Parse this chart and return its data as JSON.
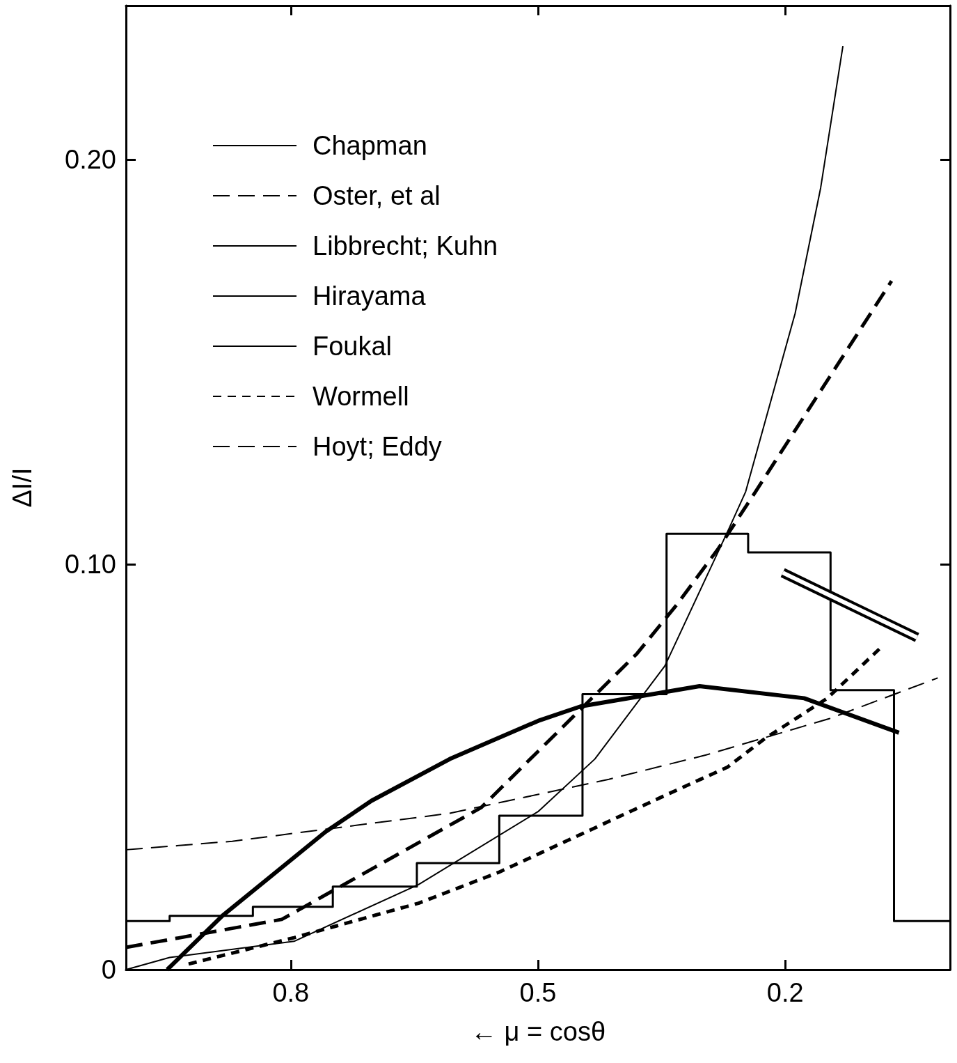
{
  "chart_data": {
    "type": "line",
    "xlabel": "← μ = cosθ",
    "ylabel": "ΔI/I",
    "xlim": [
      1,
      0
    ],
    "xticks": [
      0.8,
      0.5,
      0.2
    ],
    "ylim": [
      0,
      0.238
    ],
    "yticks": [
      0,
      {
        "value": 0.1,
        "label": "0.10"
      },
      {
        "value": 0.2,
        "label": "0.20"
      }
    ],
    "grid": false,
    "legend": "top left",
    "marker": "none",
    "series": [
      {
        "name": "Chapman",
        "color": "#000000",
        "line_style": "solid",
        "x": [
          1.0,
          0.947,
          0.796,
          0.645,
          0.5,
          0.431,
          0.346,
          0.268,
          0.248,
          0.188,
          0.157,
          0.13
        ],
        "values": [
          0,
          0.003,
          0.007,
          0.021,
          0.039,
          0.052,
          0.075,
          0.109,
          0.118,
          0.162,
          0.193,
          0.228
        ]
      },
      {
        "name": "Oster, et al",
        "color": "#000000",
        "line_style": "dashed",
        "x": [
          1.0,
          0.811,
          0.569,
          0.38,
          0.332,
          0.281,
          0.236,
          0.071
        ],
        "values": [
          0.0055,
          0.0124,
          0.04,
          0.078,
          0.09,
          0.104,
          0.118,
          0.17
        ]
      },
      {
        "name": "Libbrecht; Kuhn",
        "color": "#000000",
        "line_style": "solid",
        "x": [
          0.203,
          0.04
        ],
        "values": [
          0.098,
          0.082
        ]
      },
      {
        "name": "Hirayama",
        "type": "step",
        "color": "#000000",
        "line_style": "solid",
        "x": [
          1.0,
          0.947,
          0.846,
          0.749,
          0.647,
          0.547,
          0.446,
          0.344,
          0.245,
          0.145,
          0.068,
          0.0
        ],
        "values": [
          0.012,
          0.0133,
          0.0155,
          0.0205,
          0.0263,
          0.038,
          0.068,
          0.1076,
          0.103,
          0.069,
          0.012,
          0.012
        ]
      },
      {
        "name": "Foukal",
        "color": "#000000",
        "line_style": "solid",
        "x": [
          0.95,
          0.883,
          0.758,
          0.702,
          0.607,
          0.5,
          0.448,
          0.304,
          0.177,
          0.062
        ],
        "values": [
          0,
          0.0133,
          0.034,
          0.0417,
          0.052,
          0.0614,
          0.065,
          0.07,
          0.067,
          0.0585
        ]
      },
      {
        "name": "Wormell",
        "color": "#000000",
        "line_style": "dotted",
        "x": [
          0.924,
          0.796,
          0.645,
          0.548,
          0.346,
          0.27,
          0.225,
          0.149,
          0.084
        ],
        "values": [
          0.0014,
          0.0079,
          0.0164,
          0.024,
          0.043,
          0.05,
          0.057,
          0.067,
          0.0795
        ]
      },
      {
        "name": "Hoyt; Eddy",
        "color": "#000000",
        "line_style": "dashed",
        "x": [
          1.0,
          0.871,
          0.607,
          0.414,
          0.296,
          0.146,
          0.015
        ],
        "values": [
          0.0296,
          0.0317,
          0.0386,
          0.047,
          0.053,
          0.062,
          0.072
        ]
      }
    ]
  }
}
